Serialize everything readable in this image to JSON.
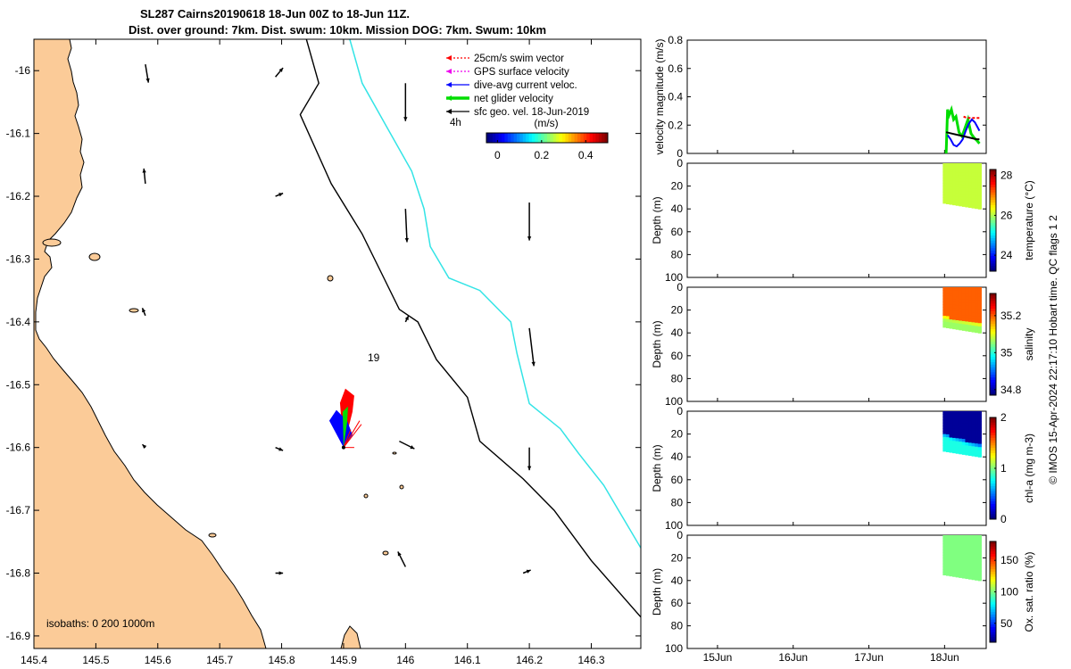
{
  "title_line1": "SL287 Cairns20190618 18-Jun 00Z to 18-Jun 11Z.",
  "title_line2": "Dist. over ground: 7km. Dist. swum: 10km. Mission DOG: 7km. Swum: 10km",
  "credit": "© IMOS 15-Apr-2024 22:17:10 Hobart time. QC flags 1  2",
  "colors": {
    "land": "#fbcb98",
    "isobath_200": "#000000",
    "isobath_1000": "#33e4e6",
    "swim": "#ff0000",
    "gps": "#ee00ee",
    "dive": "#0000ff",
    "net": "#00dd00",
    "sfc": "#000000"
  },
  "chart_data": [
    {
      "type": "map",
      "name": "glider-track-map",
      "xlim": [
        145.4,
        146.38
      ],
      "ylim": [
        -16.92,
        -15.95
      ],
      "x_ticks": [
        145.4,
        145.5,
        145.6,
        145.7,
        145.8,
        145.9,
        146,
        146.1,
        146.2,
        146.3
      ],
      "x_tick_labels": [
        "145.4",
        "145.5",
        "145.6",
        "145.7",
        "145.8",
        "145.9",
        "146",
        "146.1",
        "146.2",
        "146.3"
      ],
      "y_ticks": [
        -16,
        -16.1,
        -16.2,
        -16.3,
        -16.4,
        -16.5,
        -16.6,
        -16.7,
        -16.8,
        -16.9
      ],
      "y_tick_labels": [
        "-16",
        "-16.1",
        "-16.2",
        "-16.3",
        "-16.4",
        "-16.5",
        "-16.6",
        "-16.7",
        "-16.8",
        "-16.9"
      ],
      "legend": [
        {
          "label": "25cm/s swim vector",
          "color": "#ff0000",
          "style": "dotted"
        },
        {
          "label": "GPS surface velocity",
          "color": "#ee00ee",
          "style": "dotted"
        },
        {
          "label": "dive-avg current veloc.",
          "color": "#0000ff",
          "style": "solid"
        },
        {
          "label": "net glider velocity",
          "color": "#00dd00",
          "style": "thick"
        },
        {
          "label": "sfc geo. vel. 18-Jun-2019",
          "color": "#000000",
          "style": "solid"
        }
      ],
      "time_label": "4h",
      "colorbar": {
        "title": "(m/s)",
        "range": [
          -0.05,
          0.5
        ],
        "ticks": [
          0,
          0.2,
          0.4
        ],
        "tick_labels": [
          "0",
          "0.2",
          "0.4"
        ]
      },
      "day_label": "19",
      "isobath_text": "isobaths: 0   200  1000m",
      "isobath_200_path": [
        [
          145.84,
          -15.95
        ],
        [
          145.86,
          -16.02
        ],
        [
          145.83,
          -16.07
        ],
        [
          145.88,
          -16.18
        ],
        [
          145.93,
          -16.26
        ],
        [
          145.96,
          -16.32
        ],
        [
          145.99,
          -16.38
        ],
        [
          146.02,
          -16.4
        ],
        [
          146.05,
          -16.46
        ],
        [
          146.1,
          -16.52
        ],
        [
          146.12,
          -16.59
        ],
        [
          146.19,
          -16.65
        ],
        [
          146.24,
          -16.7
        ],
        [
          146.3,
          -16.78
        ],
        [
          146.38,
          -16.87
        ]
      ],
      "isobath_1000_path": [
        [
          145.91,
          -15.95
        ],
        [
          145.93,
          -16.02
        ],
        [
          145.97,
          -16.09
        ],
        [
          146.01,
          -16.16
        ],
        [
          146.03,
          -16.22
        ],
        [
          146.04,
          -16.28
        ],
        [
          146.07,
          -16.33
        ],
        [
          146.12,
          -16.35
        ],
        [
          146.17,
          -16.4
        ],
        [
          146.18,
          -16.45
        ],
        [
          146.2,
          -16.53
        ],
        [
          146.25,
          -16.57
        ],
        [
          146.28,
          -16.61
        ],
        [
          146.32,
          -16.66
        ],
        [
          146.35,
          -16.71
        ],
        [
          146.38,
          -16.76
        ]
      ],
      "current_arrows": [
        {
          "lon": 145.58,
          "lat": -15.99,
          "u": 0.02,
          "v": -0.12
        },
        {
          "lon": 145.58,
          "lat": -16.18,
          "u": -0.01,
          "v": 0.1
        },
        {
          "lon": 145.58,
          "lat": -16.39,
          "u": -0.02,
          "v": 0.05
        },
        {
          "lon": 145.58,
          "lat": -16.6,
          "u": -0.02,
          "v": 0.02
        },
        {
          "lon": 145.79,
          "lat": -16.01,
          "u": 0.05,
          "v": 0.06
        },
        {
          "lon": 145.79,
          "lat": -16.2,
          "u": 0.05,
          "v": 0.02
        },
        {
          "lon": 145.79,
          "lat": -16.6,
          "u": 0.05,
          "v": -0.02
        },
        {
          "lon": 145.79,
          "lat": -16.8,
          "u": 0.05,
          "v": 0.0
        },
        {
          "lon": 146.0,
          "lat": -16.02,
          "u": 0.0,
          "v": -0.25
        },
        {
          "lon": 146.0,
          "lat": -16.22,
          "u": 0.01,
          "v": -0.22
        },
        {
          "lon": 146.0,
          "lat": -16.4,
          "u": 0.02,
          "v": 0.04
        },
        {
          "lon": 145.99,
          "lat": -16.59,
          "u": 0.1,
          "v": -0.05
        },
        {
          "lon": 146.0,
          "lat": -16.79,
          "u": -0.05,
          "v": 0.1
        },
        {
          "lon": 146.2,
          "lat": -16.21,
          "u": 0.0,
          "v": -0.25
        },
        {
          "lon": 146.2,
          "lat": -16.41,
          "u": 0.03,
          "v": -0.25
        },
        {
          "lon": 146.2,
          "lat": -16.6,
          "u": 0.0,
          "v": -0.15
        },
        {
          "lon": 146.19,
          "lat": -16.8,
          "u": 0.05,
          "v": 0.02
        }
      ]
    },
    {
      "type": "line",
      "name": "velocity-magnitude",
      "ylabel": "velocity magnitude (m/s)",
      "ylim": [
        0,
        0.8
      ],
      "y_ticks": [
        0,
        0.2,
        0.4,
        0.6,
        0.8
      ],
      "xlim": [
        14.6,
        18.55
      ],
      "x_ticks": [
        15,
        16,
        17,
        18
      ],
      "x_tick_labels": [
        "15Jun",
        "16Jun",
        "17Jun",
        "18Jun"
      ],
      "series": [
        {
          "color": "#00dd00",
          "x": [
            18.02,
            18.04,
            18.06,
            18.09,
            18.12,
            18.15,
            18.19,
            18.23,
            18.27,
            18.31,
            18.35,
            18.39,
            18.43,
            18.46
          ],
          "y": [
            0.0,
            0.31,
            0.27,
            0.31,
            0.24,
            0.26,
            0.15,
            0.12,
            0.18,
            0.24,
            0.14,
            0.11,
            0.09,
            0.07
          ]
        },
        {
          "color": "#0000ff",
          "x": [
            18.04,
            18.08,
            18.12,
            18.16,
            18.2,
            18.24,
            18.28,
            18.32,
            18.36,
            18.4,
            18.44,
            18.46
          ],
          "y": [
            0.13,
            0.1,
            0.06,
            0.05,
            0.07,
            0.1,
            0.16,
            0.21,
            0.24,
            0.22,
            0.18,
            0.16
          ]
        },
        {
          "color": "#ff0000",
          "x": [
            18.25,
            18.3,
            18.35,
            18.4,
            18.46
          ],
          "y": [
            0.26,
            0.25,
            0.25,
            0.25,
            0.25
          ]
        },
        {
          "color": "#000000",
          "x": [
            18.02,
            18.1,
            18.18,
            18.26,
            18.34,
            18.42,
            18.46
          ],
          "y": [
            0.15,
            0.14,
            0.13,
            0.12,
            0.11,
            0.1,
            0.1
          ]
        }
      ]
    },
    {
      "type": "heatmap",
      "name": "temperature",
      "ylabel": "Depth (m)",
      "cbar_label": "temperature (°C)",
      "clim": [
        23.2,
        28.3
      ],
      "cbar_ticks": [
        24,
        26,
        28
      ],
      "ylim": [
        0,
        100
      ],
      "y_ticks": [
        0,
        20,
        40,
        60,
        80,
        100
      ],
      "x_range": [
        18.0,
        18.46
      ],
      "depth_top": 0,
      "depth_bottom": [
        35,
        40
      ],
      "surface_value": 26.1,
      "deep_value": 26.1
    },
    {
      "type": "heatmap",
      "name": "salinity",
      "ylabel": "Depth (m)",
      "cbar_label": "salinity",
      "clim": [
        34.77,
        35.32
      ],
      "cbar_ticks": [
        34.8,
        35,
        35.2
      ],
      "ylim": [
        0,
        100
      ],
      "y_ticks": [
        0,
        20,
        40,
        60,
        80,
        100
      ],
      "x_range": [
        18.0,
        18.46
      ],
      "depth_top": 0,
      "depth_bottom": [
        35,
        40
      ],
      "surface_value": 35.2,
      "deep_value": 35.06,
      "transition_depth": [
        26,
        32
      ]
    },
    {
      "type": "heatmap",
      "name": "chl-a",
      "ylabel": "Depth (m)",
      "cbar_label": "chl-a (mg m-3)",
      "clim": [
        0,
        2
      ],
      "cbar_ticks": [
        0,
        1,
        2
      ],
      "ylim": [
        0,
        100
      ],
      "y_ticks": [
        0,
        20,
        40,
        60,
        80,
        100
      ],
      "x_range": [
        18.0,
        18.46
      ],
      "depth_top": 0,
      "depth_bottom": [
        35,
        40
      ],
      "surface_value": 0.05,
      "deep_value": 0.8,
      "transition_depth": [
        20,
        30
      ]
    },
    {
      "type": "heatmap",
      "name": "oxygen",
      "ylabel": "Depth (m)",
      "cbar_label": "Ox. sat. ratio (%)",
      "clim": [
        20,
        180
      ],
      "cbar_ticks": [
        50,
        100,
        150
      ],
      "ylim": [
        0,
        100
      ],
      "y_ticks": [
        0,
        20,
        40,
        60,
        80,
        100
      ],
      "x_range": [
        18.0,
        18.46
      ],
      "x_ticks": [
        15,
        16,
        17,
        18
      ],
      "x_tick_labels": [
        "15Jun",
        "16Jun",
        "17Jun",
        "18Jun"
      ],
      "depth_top": 0,
      "depth_bottom": [
        35,
        40
      ],
      "surface_value": 100,
      "deep_value": 100
    }
  ]
}
